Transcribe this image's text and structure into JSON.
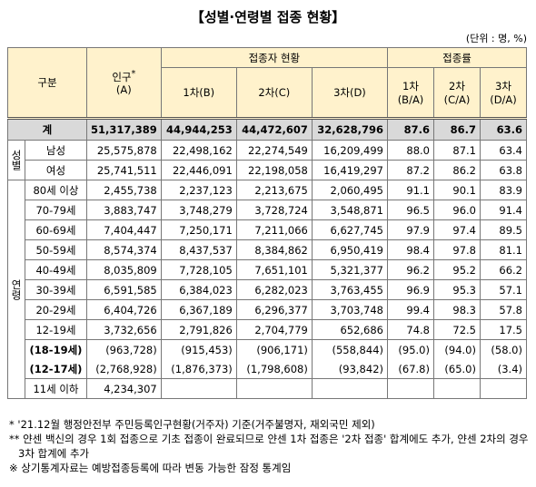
{
  "title": "【성별·연령별 접종 현황】",
  "unit": "(단위 : 명, %)",
  "header": {
    "category": "구분",
    "population": {
      "label": "인구",
      "mark": "*",
      "sub": "(A)"
    },
    "vaccinated": "접종자 현황",
    "doses": [
      "1차(B)",
      "2차(C)",
      "3차(D)"
    ],
    "rate": "접종률",
    "rates": [
      {
        "top": "1차",
        "bottom": "(B/A)"
      },
      {
        "top": "2차",
        "bottom": "(C/A)"
      },
      {
        "top": "3차",
        "bottom": "(D/A)"
      }
    ]
  },
  "total": {
    "label": "계",
    "values": [
      "51,317,389",
      "44,944,253",
      "44,472,607",
      "32,628,796",
      "87.6",
      "86.7",
      "63.6"
    ]
  },
  "groups": [
    {
      "label": "성별",
      "rows": [
        {
          "label": "남성",
          "values": [
            "25,575,878",
            "22,498,162",
            "22,274,549",
            "16,209,499",
            "88.0",
            "87.1",
            "63.4"
          ]
        },
        {
          "label": "여성",
          "values": [
            "25,741,511",
            "22,446,091",
            "22,198,058",
            "16,419,297",
            "87.2",
            "86.2",
            "63.8"
          ]
        }
      ]
    },
    {
      "label": "연령",
      "rows": [
        {
          "label": "80세 이상",
          "values": [
            "2,455,738",
            "2,237,123",
            "2,213,675",
            "2,060,495",
            "91.1",
            "90.1",
            "83.9"
          ]
        },
        {
          "label": "70-79세",
          "values": [
            "3,883,747",
            "3,748,279",
            "3,728,724",
            "3,548,871",
            "96.5",
            "96.0",
            "91.4"
          ]
        },
        {
          "label": "60-69세",
          "values": [
            "7,404,447",
            "7,250,171",
            "7,211,066",
            "6,627,745",
            "97.9",
            "97.4",
            "89.5"
          ]
        },
        {
          "label": "50-59세",
          "values": [
            "8,574,374",
            "8,437,537",
            "8,384,862",
            "6,950,419",
            "98.4",
            "97.8",
            "81.1"
          ]
        },
        {
          "label": "40-49세",
          "values": [
            "8,035,809",
            "7,728,105",
            "7,651,101",
            "5,321,377",
            "96.2",
            "95.2",
            "66.2"
          ]
        },
        {
          "label": "30-39세",
          "values": [
            "6,591,585",
            "6,384,023",
            "6,282,023",
            "3,763,455",
            "96.9",
            "95.3",
            "57.1"
          ]
        },
        {
          "label": "20-29세",
          "values": [
            "6,404,726",
            "6,367,189",
            "6,296,377",
            "3,703,748",
            "99.4",
            "98.3",
            "57.8"
          ]
        },
        {
          "label": "12-19세",
          "values": [
            "3,732,656",
            "2,791,826",
            "2,704,779",
            "652,686",
            "74.8",
            "72.5",
            "17.5"
          ]
        },
        {
          "label": "(18-19세)",
          "values": [
            "(963,728)",
            "(915,453)",
            "(906,171)",
            "(558,844)",
            "(95.0)",
            "(94.0)",
            "(58.0)"
          ]
        },
        {
          "label": "(12-17세)",
          "values": [
            "(2,768,928)",
            "(1,876,373)",
            "(1,798,608)",
            "(93,842)",
            "(67.8)",
            "(65.0)",
            "(3.4)"
          ]
        },
        {
          "label": "11세 이하",
          "values": [
            "4,234,307"
          ]
        }
      ]
    }
  ],
  "notes": [
    "* '21.12월 행정안전부 주민등록인구현황(거주자) 기준(거주불명자, 재외국민 제외)",
    "** 얀센 백신의 경우 1회 접종으로 기초 접종이 완료되므로 얀센 1차 접종은 '2차 접종' 합계에도 추가, 얀센 2차의 경우 3차 합계에 추가",
    "※ 상기통계자료는 예방접종등록에 따라 변동 가능한 잠정 통계임"
  ]
}
